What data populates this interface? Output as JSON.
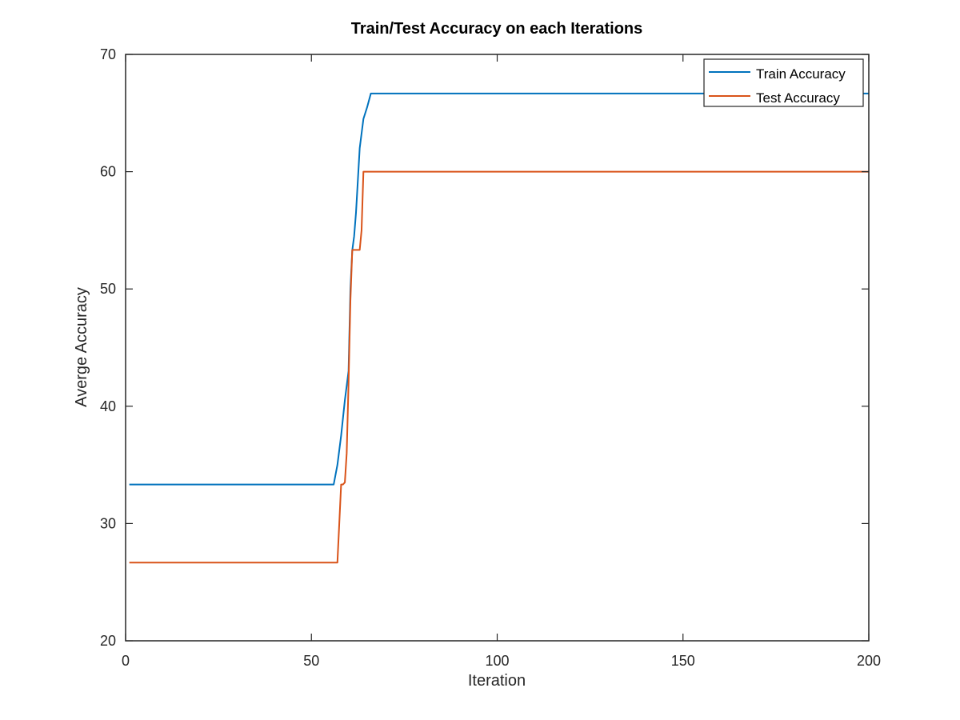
{
  "chart_data": {
    "type": "line",
    "title": "Train/Test Accuracy on each Iterations",
    "xlabel": "Iteration",
    "ylabel": "Averge Accuracy",
    "xlim": [
      0,
      200
    ],
    "ylim": [
      20,
      70
    ],
    "xticks": [
      0,
      50,
      100,
      150,
      200
    ],
    "yticks": [
      20,
      30,
      40,
      50,
      60,
      70
    ],
    "grid": false,
    "legend_position": "top-right",
    "series": [
      {
        "name": "Train Accuracy",
        "color": "#0072BD",
        "x": [
          1,
          56,
          57,
          58,
          59,
          60,
          60.5,
          61,
          61.5,
          62,
          63,
          64,
          65,
          66,
          200
        ],
        "y": [
          33.33,
          33.33,
          35,
          37.5,
          40.5,
          43,
          50,
          53.3,
          54.5,
          56.5,
          62,
          64.5,
          65.5,
          66.67,
          66.67
        ]
      },
      {
        "name": "Test Accuracy",
        "color": "#D95319",
        "x": [
          1,
          57,
          57.5,
          58,
          58.5,
          59,
          59.5,
          60,
          60.5,
          61,
          61.5,
          62,
          62.5,
          63,
          63.5,
          64,
          200
        ],
        "y": [
          26.67,
          26.67,
          30,
          33.33,
          33.33,
          33.5,
          36,
          42,
          49,
          53.33,
          53.33,
          53.33,
          53.33,
          53.33,
          55,
          60,
          60
        ]
      }
    ]
  }
}
